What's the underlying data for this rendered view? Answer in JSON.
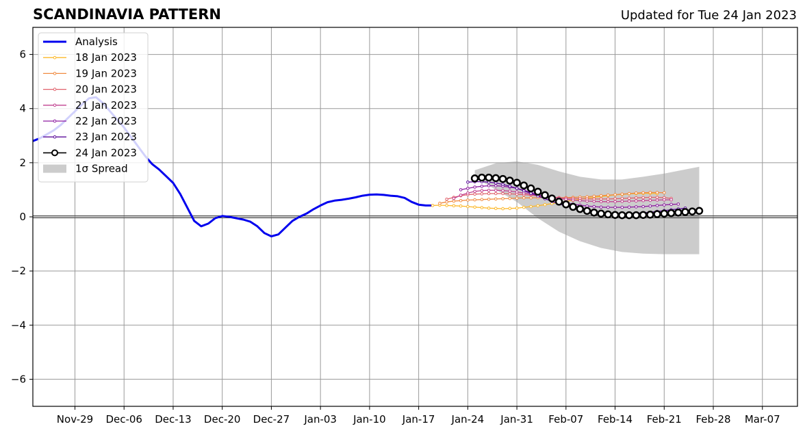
{
  "header": {
    "title": "SCANDINAVIA PATTERN",
    "subtitle": "Updated for Tue 24 Jan 2023"
  },
  "chart_data": {
    "type": "line",
    "title": "SCANDINAVIA PATTERN",
    "subtitle": "Updated for Tue 24 Jan 2023",
    "xlabel": "",
    "ylabel": "",
    "xlim": [
      "2022-11-23",
      "2023-03-12"
    ],
    "ylim": [
      -7,
      7
    ],
    "x_ticks": [
      "2022-11-29",
      "2022-12-06",
      "2022-12-13",
      "2022-12-20",
      "2022-12-27",
      "2023-01-03",
      "2023-01-10",
      "2023-01-17",
      "2023-01-24",
      "2023-01-31",
      "2023-02-07",
      "2023-02-14",
      "2023-02-21",
      "2023-02-28",
      "2023-03-07"
    ],
    "x_tick_labels": [
      "Nov-29",
      "Dec-06",
      "Dec-13",
      "Dec-20",
      "Dec-27",
      "Jan-03",
      "Jan-10",
      "Jan-17",
      "Jan-24",
      "Jan-31",
      "Feb-07",
      "Feb-14",
      "Feb-21",
      "Feb-28",
      "Mar-07"
    ],
    "y_ticks": [
      -6,
      -4,
      -2,
      0,
      2,
      4,
      6
    ],
    "y_tick_labels": [
      "−6",
      "−4",
      "−2",
      "0",
      "2",
      "4",
      "6"
    ],
    "grid": true,
    "legend_position": "upper-left",
    "zero_line": 0,
    "colors": {
      "analysis": "#0000ee",
      "spread": "#cccccc",
      "grid": "#999999"
    },
    "legend": [
      {
        "label": "Analysis",
        "kind": "line",
        "color": "#0000ee"
      },
      {
        "label": "18 Jan 2023",
        "kind": "small-marker",
        "color": "#fcb829"
      },
      {
        "label": "19 Jan 2023",
        "kind": "small-marker",
        "color": "#f08a40"
      },
      {
        "label": "20 Jan 2023",
        "kind": "small-marker",
        "color": "#e0606a"
      },
      {
        "label": "21 Jan 2023",
        "kind": "small-marker",
        "color": "#c0408f"
      },
      {
        "label": "22 Jan 2023",
        "kind": "small-marker",
        "color": "#8c1aa0"
      },
      {
        "label": "23 Jan 2023",
        "kind": "small-marker",
        "color": "#5a0a9a"
      },
      {
        "label": "24 Jan 2023",
        "kind": "big-marker",
        "color": "#000000"
      },
      {
        "label": "1σ Spread",
        "kind": "patch",
        "color": "#cccccc"
      }
    ],
    "analysis": {
      "name": "Analysis",
      "x": [
        "2022-11-23",
        "2022-11-24",
        "2022-11-25",
        "2022-11-26",
        "2022-11-27",
        "2022-11-28",
        "2022-11-29",
        "2022-11-30",
        "2022-12-01",
        "2022-12-02",
        "2022-12-03",
        "2022-12-04",
        "2022-12-05",
        "2022-12-06",
        "2022-12-07",
        "2022-12-08",
        "2022-12-09",
        "2022-12-10",
        "2022-12-11",
        "2022-12-12",
        "2022-12-13",
        "2022-12-14",
        "2022-12-15",
        "2022-12-16",
        "2022-12-17",
        "2022-12-18",
        "2022-12-19",
        "2022-12-20",
        "2022-12-21",
        "2022-12-22",
        "2022-12-23",
        "2022-12-24",
        "2022-12-25",
        "2022-12-26",
        "2022-12-27",
        "2022-12-28",
        "2022-12-29",
        "2022-12-30",
        "2022-12-31",
        "2023-01-01",
        "2023-01-02",
        "2023-01-03",
        "2023-01-04",
        "2023-01-05",
        "2023-01-06",
        "2023-01-07",
        "2023-01-08",
        "2023-01-09",
        "2023-01-10",
        "2023-01-11",
        "2023-01-12",
        "2023-01-13",
        "2023-01-14",
        "2023-01-15",
        "2023-01-16",
        "2023-01-17",
        "2023-01-18",
        "2023-01-19"
      ],
      "y": [
        2.8,
        2.9,
        3.05,
        3.2,
        3.4,
        3.65,
        3.9,
        4.15,
        4.38,
        4.42,
        4.2,
        3.9,
        3.6,
        3.3,
        2.95,
        2.6,
        2.25,
        1.95,
        1.75,
        1.5,
        1.25,
        0.85,
        0.35,
        -0.15,
        -0.35,
        -0.25,
        -0.05,
        0.03,
        0.0,
        -0.05,
        -0.1,
        -0.18,
        -0.35,
        -0.6,
        -0.72,
        -0.65,
        -0.4,
        -0.15,
        0.0,
        0.12,
        0.28,
        0.42,
        0.54,
        0.6,
        0.63,
        0.67,
        0.72,
        0.78,
        0.82,
        0.83,
        0.81,
        0.78,
        0.76,
        0.7,
        0.55,
        0.45,
        0.42,
        0.42
      ]
    },
    "forecasts": [
      {
        "name": "18 Jan 2023",
        "color": "#fcb829",
        "marker": "small",
        "x": [
          "2023-01-19",
          "2023-01-20",
          "2023-01-21",
          "2023-01-22",
          "2023-01-23",
          "2023-01-24",
          "2023-01-25",
          "2023-01-26",
          "2023-01-27",
          "2023-01-28",
          "2023-01-29",
          "2023-01-30",
          "2023-01-31",
          "2023-02-01",
          "2023-02-02",
          "2023-02-03",
          "2023-02-04",
          "2023-02-05",
          "2023-02-06",
          "2023-02-07",
          "2023-02-08",
          "2023-02-09",
          "2023-02-10",
          "2023-02-11",
          "2023-02-12",
          "2023-02-13",
          "2023-02-14",
          "2023-02-15",
          "2023-02-16",
          "2023-02-17",
          "2023-02-18",
          "2023-02-19",
          "2023-02-20"
        ],
        "y": [
          0.42,
          0.43,
          0.42,
          0.41,
          0.4,
          0.38,
          0.36,
          0.34,
          0.32,
          0.31,
          0.3,
          0.31,
          0.32,
          0.35,
          0.38,
          0.41,
          0.45,
          0.49,
          0.53,
          0.57,
          0.61,
          0.65,
          0.69,
          0.72,
          0.75,
          0.78,
          0.81,
          0.83,
          0.85,
          0.86,
          0.87,
          0.87,
          0.86
        ]
      },
      {
        "name": "19 Jan 2023",
        "color": "#f08a40",
        "marker": "small",
        "x": [
          "2023-01-20",
          "2023-01-21",
          "2023-01-22",
          "2023-01-23",
          "2023-01-24",
          "2023-01-25",
          "2023-01-26",
          "2023-01-27",
          "2023-01-28",
          "2023-01-29",
          "2023-01-30",
          "2023-01-31",
          "2023-02-01",
          "2023-02-02",
          "2023-02-03",
          "2023-02-04",
          "2023-02-05",
          "2023-02-06",
          "2023-02-07",
          "2023-02-08",
          "2023-02-09",
          "2023-02-10",
          "2023-02-11",
          "2023-02-12",
          "2023-02-13",
          "2023-02-14",
          "2023-02-15",
          "2023-02-16",
          "2023-02-17",
          "2023-02-18",
          "2023-02-19",
          "2023-02-20",
          "2023-02-21"
        ],
        "y": [
          0.5,
          0.55,
          0.58,
          0.6,
          0.62,
          0.63,
          0.64,
          0.65,
          0.66,
          0.67,
          0.68,
          0.69,
          0.7,
          0.7,
          0.71,
          0.71,
          0.71,
          0.71,
          0.71,
          0.72,
          0.73,
          0.74,
          0.76,
          0.78,
          0.8,
          0.82,
          0.84,
          0.86,
          0.88,
          0.89,
          0.9,
          0.9,
          0.89
        ]
      },
      {
        "name": "20 Jan 2023",
        "color": "#e0606a",
        "marker": "small",
        "x": [
          "2023-01-21",
          "2023-01-22",
          "2023-01-23",
          "2023-01-24",
          "2023-01-25",
          "2023-01-26",
          "2023-01-27",
          "2023-01-28",
          "2023-01-29",
          "2023-01-30",
          "2023-01-31",
          "2023-02-01",
          "2023-02-02",
          "2023-02-03",
          "2023-02-04",
          "2023-02-05",
          "2023-02-06",
          "2023-02-07",
          "2023-02-08",
          "2023-02-09",
          "2023-02-10",
          "2023-02-11",
          "2023-02-12",
          "2023-02-13",
          "2023-02-14",
          "2023-02-15",
          "2023-02-16",
          "2023-02-17",
          "2023-02-18",
          "2023-02-19",
          "2023-02-20",
          "2023-02-21",
          "2023-02-22"
        ],
        "y": [
          0.65,
          0.72,
          0.78,
          0.82,
          0.84,
          0.85,
          0.86,
          0.86,
          0.86,
          0.85,
          0.84,
          0.82,
          0.8,
          0.78,
          0.76,
          0.73,
          0.71,
          0.69,
          0.68,
          0.67,
          0.66,
          0.66,
          0.66,
          0.66,
          0.67,
          0.68,
          0.69,
          0.7,
          0.71,
          0.72,
          0.72,
          0.71,
          0.68
        ]
      },
      {
        "name": "21 Jan 2023",
        "color": "#c0408f",
        "marker": "small",
        "x": [
          "2023-01-22",
          "2023-01-23",
          "2023-01-24",
          "2023-01-25",
          "2023-01-26",
          "2023-01-27",
          "2023-01-28",
          "2023-01-29",
          "2023-01-30",
          "2023-01-31",
          "2023-02-01",
          "2023-02-02",
          "2023-02-03",
          "2023-02-04",
          "2023-02-05",
          "2023-02-06",
          "2023-02-07",
          "2023-02-08",
          "2023-02-09",
          "2023-02-10",
          "2023-02-11",
          "2023-02-12",
          "2023-02-13",
          "2023-02-14",
          "2023-02-15",
          "2023-02-16",
          "2023-02-17",
          "2023-02-18",
          "2023-02-19",
          "2023-02-20",
          "2023-02-21",
          "2023-02-22"
        ],
        "y": [
          0.68,
          0.8,
          0.88,
          0.94,
          0.97,
          0.98,
          0.98,
          0.97,
          0.95,
          0.92,
          0.88,
          0.84,
          0.8,
          0.76,
          0.72,
          0.68,
          0.65,
          0.62,
          0.6,
          0.58,
          0.57,
          0.56,
          0.56,
          0.56,
          0.57,
          0.58,
          0.59,
          0.6,
          0.61,
          0.62,
          0.63,
          0.63
        ]
      },
      {
        "name": "22 Jan 2023",
        "color": "#8c1aa0",
        "marker": "small",
        "x": [
          "2023-01-23",
          "2023-01-24",
          "2023-01-25",
          "2023-01-26",
          "2023-01-27",
          "2023-01-28",
          "2023-01-29",
          "2023-01-30",
          "2023-01-31",
          "2023-02-01",
          "2023-02-02",
          "2023-02-03",
          "2023-02-04",
          "2023-02-05",
          "2023-02-06",
          "2023-02-07",
          "2023-02-08",
          "2023-02-09",
          "2023-02-10",
          "2023-02-11",
          "2023-02-12",
          "2023-02-13",
          "2023-02-14",
          "2023-02-15",
          "2023-02-16",
          "2023-02-17",
          "2023-02-18",
          "2023-02-19",
          "2023-02-20",
          "2023-02-21",
          "2023-02-22",
          "2023-02-23"
        ],
        "y": [
          1.0,
          1.05,
          1.1,
          1.13,
          1.15,
          1.15,
          1.13,
          1.1,
          1.05,
          0.98,
          0.9,
          0.82,
          0.74,
          0.66,
          0.59,
          0.52,
          0.47,
          0.43,
          0.4,
          0.38,
          0.36,
          0.35,
          0.35,
          0.35,
          0.36,
          0.37,
          0.38,
          0.4,
          0.42,
          0.44,
          0.46,
          0.47
        ]
      },
      {
        "name": "23 Jan 2023",
        "color": "#5a0a9a",
        "marker": "small",
        "x": [
          "2023-01-24",
          "2023-01-25",
          "2023-01-26",
          "2023-01-27",
          "2023-01-28",
          "2023-01-29",
          "2023-01-30",
          "2023-01-31",
          "2023-02-01",
          "2023-02-02",
          "2023-02-03",
          "2023-02-04",
          "2023-02-05",
          "2023-02-06",
          "2023-02-07",
          "2023-02-08",
          "2023-02-09",
          "2023-02-10",
          "2023-02-11",
          "2023-02-12",
          "2023-02-13",
          "2023-02-14",
          "2023-02-15",
          "2023-02-16",
          "2023-02-17",
          "2023-02-18",
          "2023-02-19",
          "2023-02-20",
          "2023-02-21",
          "2023-02-22",
          "2023-02-23",
          "2023-02-24"
        ],
        "y": [
          1.28,
          1.3,
          1.3,
          1.28,
          1.25,
          1.2,
          1.13,
          1.05,
          0.96,
          0.87,
          0.77,
          0.67,
          0.57,
          0.48,
          0.4,
          0.33,
          0.27,
          0.22,
          0.18,
          0.15,
          0.13,
          0.12,
          0.12,
          0.12,
          0.13,
          0.15,
          0.17,
          0.2,
          0.23,
          0.26,
          0.29,
          0.32
        ]
      },
      {
        "name": "24 Jan 2023",
        "color": "#000000",
        "marker": "big",
        "x": [
          "2023-01-25",
          "2023-01-26",
          "2023-01-27",
          "2023-01-28",
          "2023-01-29",
          "2023-01-30",
          "2023-01-31",
          "2023-02-01",
          "2023-02-02",
          "2023-02-03",
          "2023-02-04",
          "2023-02-05",
          "2023-02-06",
          "2023-02-07",
          "2023-02-08",
          "2023-02-09",
          "2023-02-10",
          "2023-02-11",
          "2023-02-12",
          "2023-02-13",
          "2023-02-14",
          "2023-02-15",
          "2023-02-16",
          "2023-02-17",
          "2023-02-18",
          "2023-02-19",
          "2023-02-20",
          "2023-02-21",
          "2023-02-22",
          "2023-02-23",
          "2023-02-24",
          "2023-02-25",
          "2023-02-26"
        ],
        "y": [
          1.42,
          1.45,
          1.45,
          1.43,
          1.4,
          1.34,
          1.26,
          1.16,
          1.05,
          0.93,
          0.8,
          0.68,
          0.56,
          0.46,
          0.37,
          0.29,
          0.22,
          0.16,
          0.12,
          0.09,
          0.07,
          0.06,
          0.06,
          0.06,
          0.07,
          0.08,
          0.1,
          0.12,
          0.14,
          0.16,
          0.18,
          0.2,
          0.22
        ]
      }
    ],
    "spread": {
      "name": "1σ Spread",
      "x": [
        "2023-01-25",
        "2023-01-28",
        "2023-01-31",
        "2023-02-03",
        "2023-02-06",
        "2023-02-09",
        "2023-02-12",
        "2023-02-15",
        "2023-02-18",
        "2023-02-21",
        "2023-02-24",
        "2023-02-26"
      ],
      "upper": [
        1.72,
        1.98,
        2.05,
        1.92,
        1.68,
        1.48,
        1.38,
        1.38,
        1.48,
        1.6,
        1.75,
        1.85
      ],
      "lower": [
        1.45,
        1.0,
        0.55,
        -0.05,
        -0.55,
        -0.9,
        -1.15,
        -1.3,
        -1.36,
        -1.38,
        -1.38,
        -1.38
      ]
    }
  }
}
